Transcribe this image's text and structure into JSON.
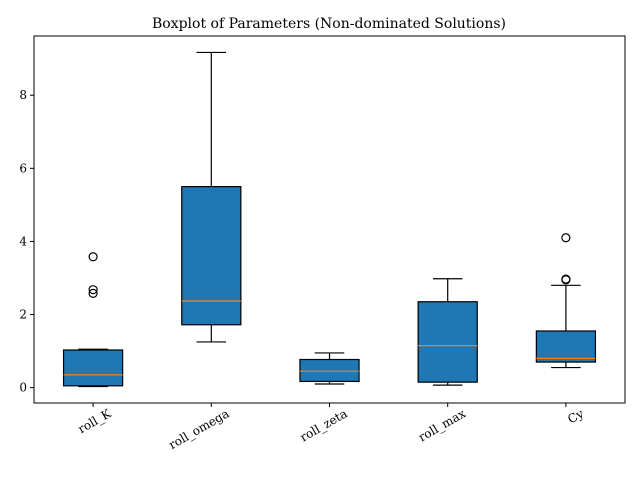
{
  "chart_data": {
    "type": "boxplot",
    "title": "Boxplot of Parameters (Non-dominated Solutions)",
    "xlabel": "",
    "ylabel": "",
    "categories": [
      "roll_K",
      "roll_omega",
      "roll_zeta",
      "roll_max",
      "Cy"
    ],
    "boxes": [
      {
        "name": "roll_K",
        "whisker_low": 0.03,
        "q1": 0.05,
        "median": 0.35,
        "q3": 1.03,
        "whisker_high": 1.05,
        "outliers": [
          2.58,
          2.68,
          3.58
        ]
      },
      {
        "name": "roll_omega",
        "whisker_low": 1.25,
        "q1": 1.72,
        "median": 2.37,
        "q3": 5.5,
        "whisker_high": 9.17,
        "outliers": []
      },
      {
        "name": "roll_zeta",
        "whisker_low": 0.1,
        "q1": 0.17,
        "median": 0.45,
        "q3": 0.77,
        "whisker_high": 0.95,
        "outliers": []
      },
      {
        "name": "roll_max",
        "whisker_low": 0.07,
        "q1": 0.15,
        "median": 1.15,
        "q3": 2.35,
        "whisker_high": 2.98,
        "outliers": []
      },
      {
        "name": "Cy",
        "whisker_low": 0.55,
        "q1": 0.7,
        "median": 0.8,
        "q3": 1.55,
        "whisker_high": 2.8,
        "outliers": [
          2.95,
          2.97,
          4.1
        ]
      }
    ],
    "yticks": [
      0,
      2,
      4,
      6,
      8
    ],
    "ylim": [
      -0.42,
      9.62
    ],
    "grid": false,
    "colors": {
      "box_fill": "#1f77b4",
      "median": "#ff7f0e",
      "lines": "#000000"
    }
  }
}
